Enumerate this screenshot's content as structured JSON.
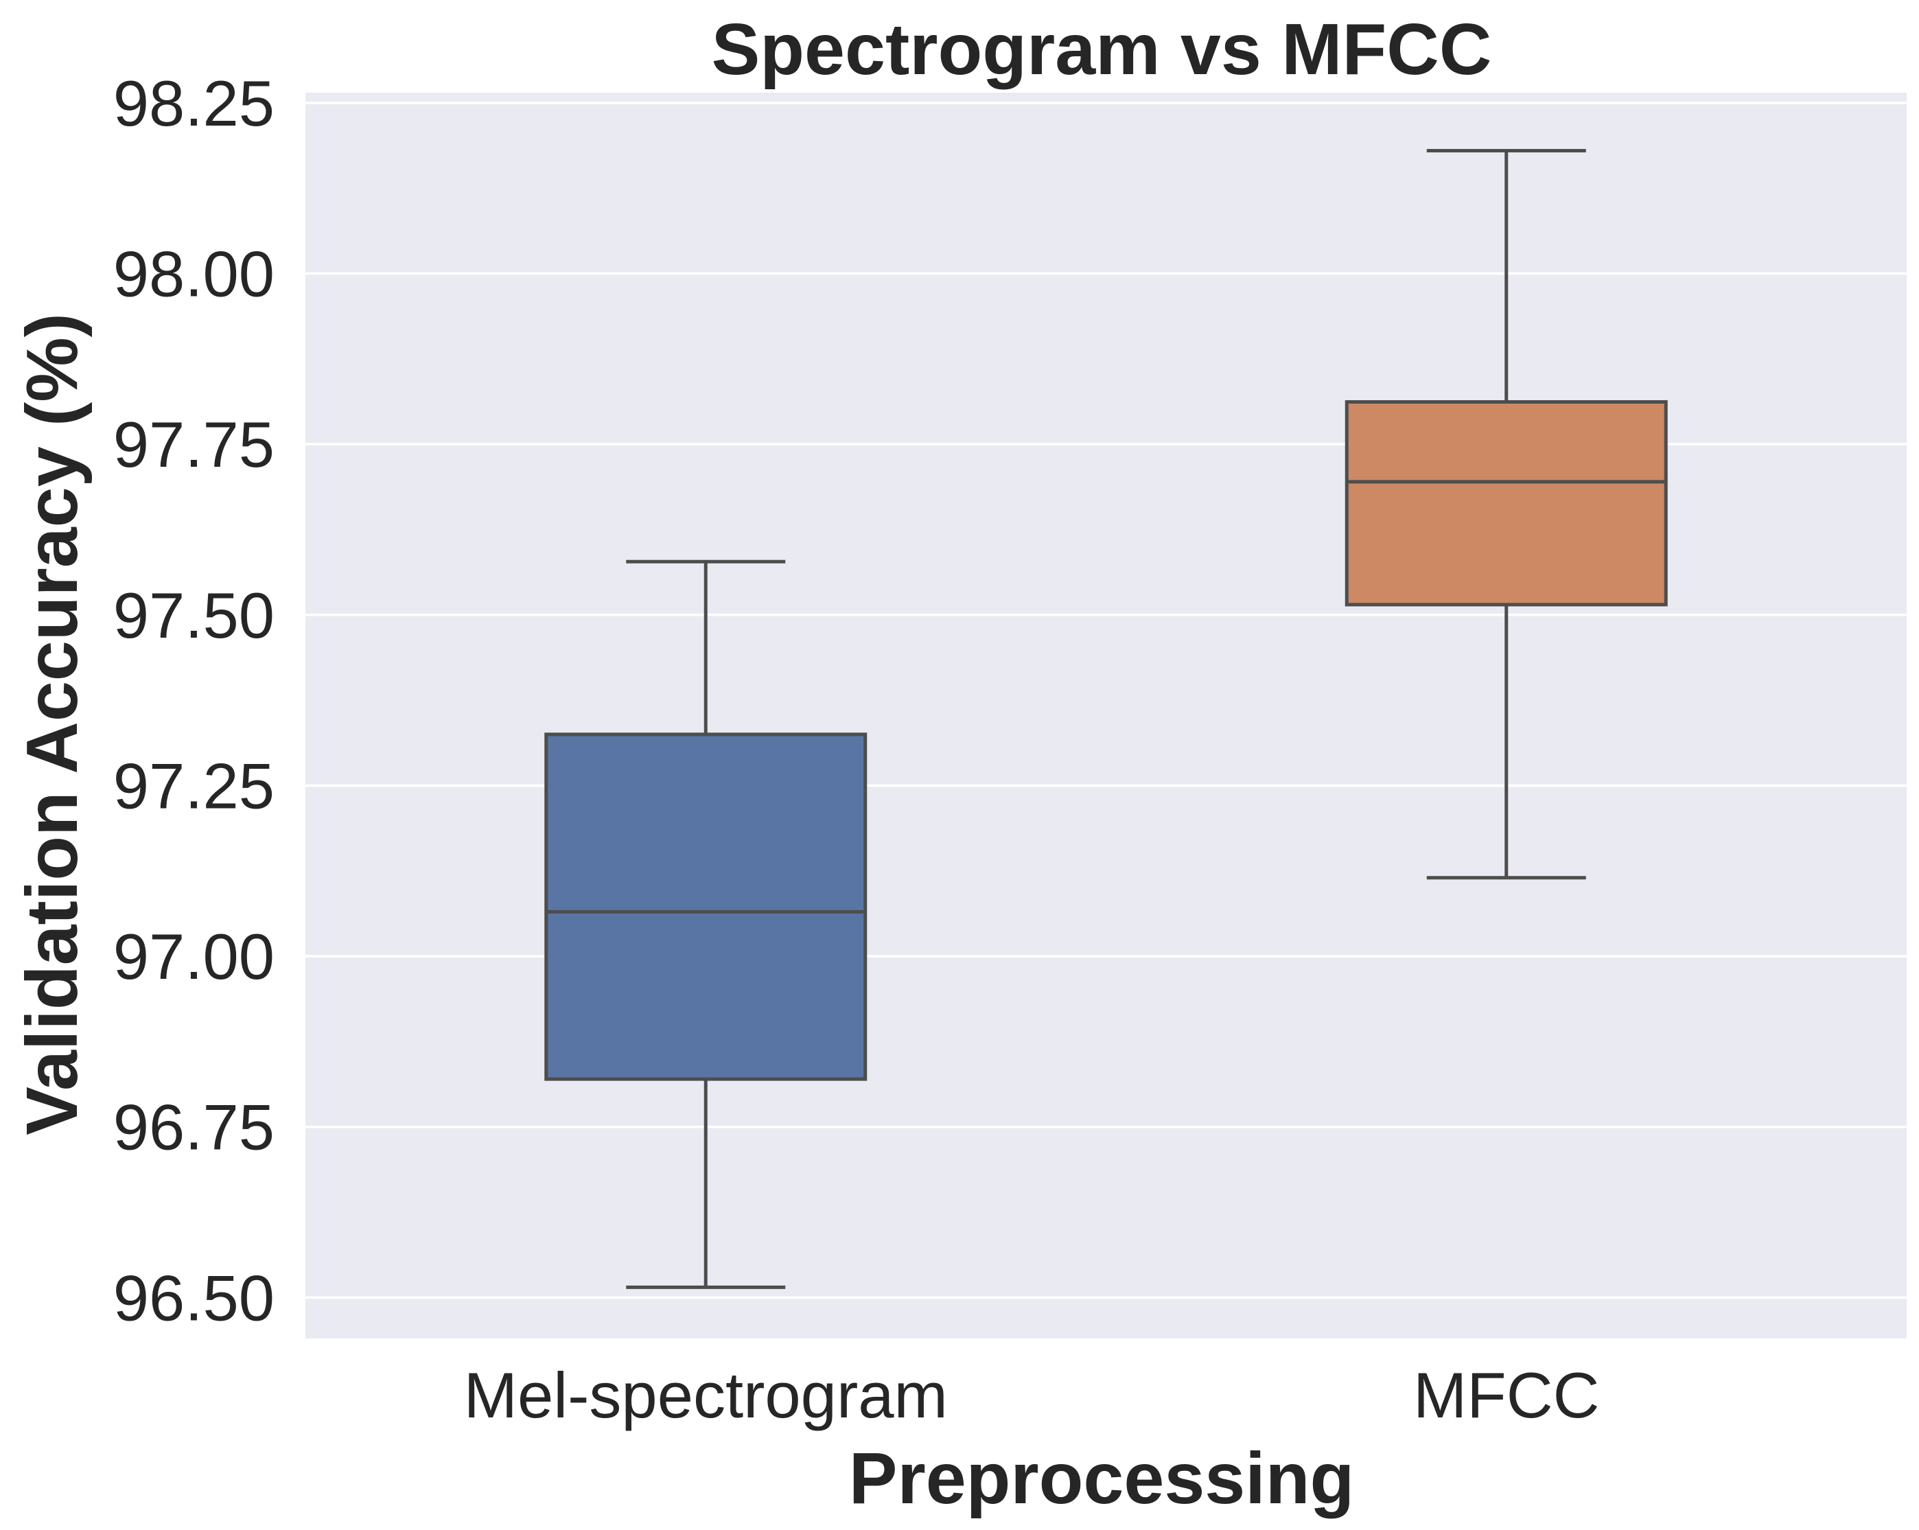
{
  "chart_data": {
    "type": "box",
    "title": "Spectrogram vs MFCC",
    "xlabel": "Preprocessing",
    "ylabel": "Validation Accuracy (%)",
    "ylim": [
      96.44,
      98.265
    ],
    "yticks": [
      96.5,
      96.75,
      97.0,
      97.25,
      97.5,
      97.75,
      98.0,
      98.25
    ],
    "ytick_labels": [
      "96.50",
      "96.75",
      "97.00",
      "97.25",
      "97.50",
      "97.75",
      "98.00",
      "98.25"
    ],
    "grid": true,
    "categories": [
      "Mel-spectrogram",
      "MFCC"
    ],
    "boxes": [
      {
        "category": "Mel-spectrogram",
        "whisker_low": 96.515,
        "q1": 96.82,
        "median": 97.065,
        "q3": 97.325,
        "whisker_high": 97.578,
        "color": "#5975a4"
      },
      {
        "category": "MFCC",
        "whisker_low": 97.115,
        "q1": 97.515,
        "median": 97.695,
        "q3": 97.812,
        "whisker_high": 98.18,
        "color": "#cc8963"
      }
    ],
    "background": "#eaeaf2",
    "line_color": "#4d4d4d"
  }
}
